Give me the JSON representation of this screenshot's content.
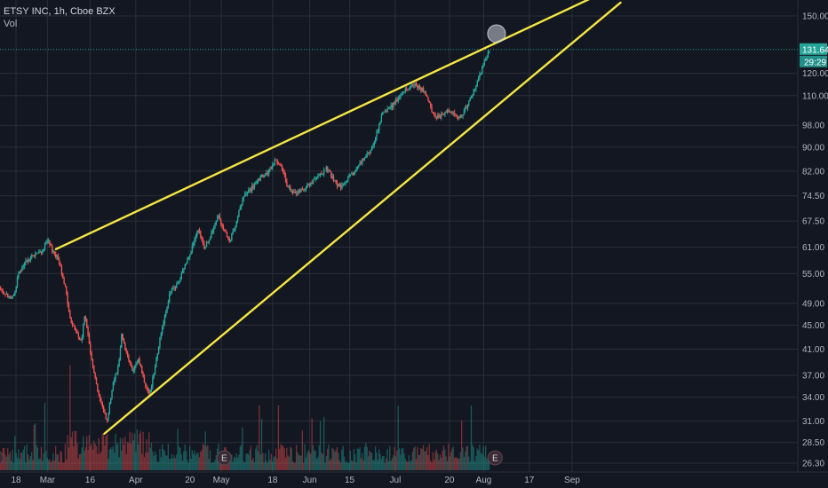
{
  "header": {
    "symbol_line": "ETSY INC, 1h, Cboe BZX",
    "volume_label": "Vol"
  },
  "chart_data": {
    "type": "candlestick",
    "title": "ETSY INC, 1h, Cboe BZX",
    "price_scale": "log",
    "y_ticks": [
      150.0,
      131.64,
      120.0,
      110.0,
      98.0,
      90.0,
      82.0,
      74.5,
      67.5,
      61.0,
      55.0,
      49.0,
      45.0,
      41.0,
      37.0,
      34.0,
      31.0,
      28.5,
      26.3
    ],
    "x_ticks": [
      {
        "label": "18",
        "day": 18
      },
      {
        "label": "Mar",
        "day": 29
      },
      {
        "label": "16",
        "day": 44
      },
      {
        "label": "Apr",
        "day": 60
      },
      {
        "label": "20",
        "day": 79
      },
      {
        "label": "May",
        "day": 90
      },
      {
        "label": "18",
        "day": 108
      },
      {
        "label": "Jun",
        "day": 121
      },
      {
        "label": "15",
        "day": 135
      },
      {
        "label": "Jul",
        "day": 151
      },
      {
        "label": "20",
        "day": 170
      },
      {
        "label": "Aug",
        "day": 182
      },
      {
        "label": "17",
        "day": 198
      },
      {
        "label": "Sep",
        "day": 213
      }
    ],
    "price_path": [
      [
        0,
        52.5
      ],
      [
        5,
        53.5
      ],
      [
        10,
        54.0
      ],
      [
        13,
        51.0
      ],
      [
        15,
        50.5
      ],
      [
        17,
        50.0
      ],
      [
        19,
        55.0
      ],
      [
        22,
        58.0
      ],
      [
        24,
        59.0
      ],
      [
        27,
        60.0
      ],
      [
        29,
        62.5
      ],
      [
        31,
        60.0
      ],
      [
        33,
        58.0
      ],
      [
        35,
        53.0
      ],
      [
        37,
        46.0
      ],
      [
        39,
        44.0
      ],
      [
        41,
        42.0
      ],
      [
        42,
        47.0
      ],
      [
        44,
        41.0
      ],
      [
        46,
        36.0
      ],
      [
        48,
        33.0
      ],
      [
        50,
        31.0
      ],
      [
        52,
        36.0
      ],
      [
        54,
        38.5
      ],
      [
        55,
        43.5
      ],
      [
        57,
        40.0
      ],
      [
        59,
        37.5
      ],
      [
        61,
        39.5
      ],
      [
        63,
        36.0
      ],
      [
        65,
        34.5
      ],
      [
        67,
        39.0
      ],
      [
        69,
        44.0
      ],
      [
        72,
        51.0
      ],
      [
        75,
        53.0
      ],
      [
        78,
        58.0
      ],
      [
        82,
        65.0
      ],
      [
        84,
        61.0
      ],
      [
        86,
        63.0
      ],
      [
        89,
        69.0
      ],
      [
        91,
        65.0
      ],
      [
        93,
        62.0
      ],
      [
        95,
        67.0
      ],
      [
        98,
        74.5
      ],
      [
        101,
        77.0
      ],
      [
        104,
        80.0
      ],
      [
        107,
        82.0
      ],
      [
        109,
        86.0
      ],
      [
        111,
        83.0
      ],
      [
        113,
        78.0
      ],
      [
        115,
        75.0
      ],
      [
        118,
        76.0
      ],
      [
        121,
        78.0
      ],
      [
        124,
        80.0
      ],
      [
        127,
        83.0
      ],
      [
        130,
        78.0
      ],
      [
        132,
        77.0
      ],
      [
        134,
        79.0
      ],
      [
        136,
        81.0
      ],
      [
        139,
        85.0
      ],
      [
        142,
        88.0
      ],
      [
        144,
        93.0
      ],
      [
        146,
        101.0
      ],
      [
        148,
        104.0
      ],
      [
        150,
        106.0
      ],
      [
        152,
        109.0
      ],
      [
        155,
        113.0
      ],
      [
        158,
        115.0
      ],
      [
        161,
        112.0
      ],
      [
        163,
        106.0
      ],
      [
        165,
        101.0
      ],
      [
        167,
        102.0
      ],
      [
        170,
        104.0
      ],
      [
        173,
        101.0
      ],
      [
        175,
        103.0
      ],
      [
        177,
        108.0
      ],
      [
        179,
        113.0
      ],
      [
        181,
        120.0
      ],
      [
        183,
        128.0
      ],
      [
        184,
        131.6
      ]
    ],
    "trendlines": [
      {
        "name": "upper",
        "from": [
          32,
          60.5
        ],
        "to": [
          220,
          161.0
        ]
      },
      {
        "name": "lower",
        "from": [
          49,
          29.5
        ],
        "to": [
          230,
          158.0
        ]
      }
    ],
    "highlight_circle": {
      "day": 186.5,
      "price": 140.0
    },
    "earnings_markers": [
      {
        "label": "E",
        "day": 11
      },
      {
        "label": "E",
        "day": 91
      },
      {
        "label": "E",
        "day": 186
      }
    ],
    "last_price": {
      "label": "131.64",
      "countdown": "29:29",
      "value": 131.64
    },
    "colors": {
      "background": "#131722",
      "grid": "#2a2e39",
      "up": "#26a69a",
      "down": "#ef5350",
      "trendline": "#f5e642",
      "price_tag": "#26a69a",
      "countdown_tag": "#26a69a"
    }
  }
}
